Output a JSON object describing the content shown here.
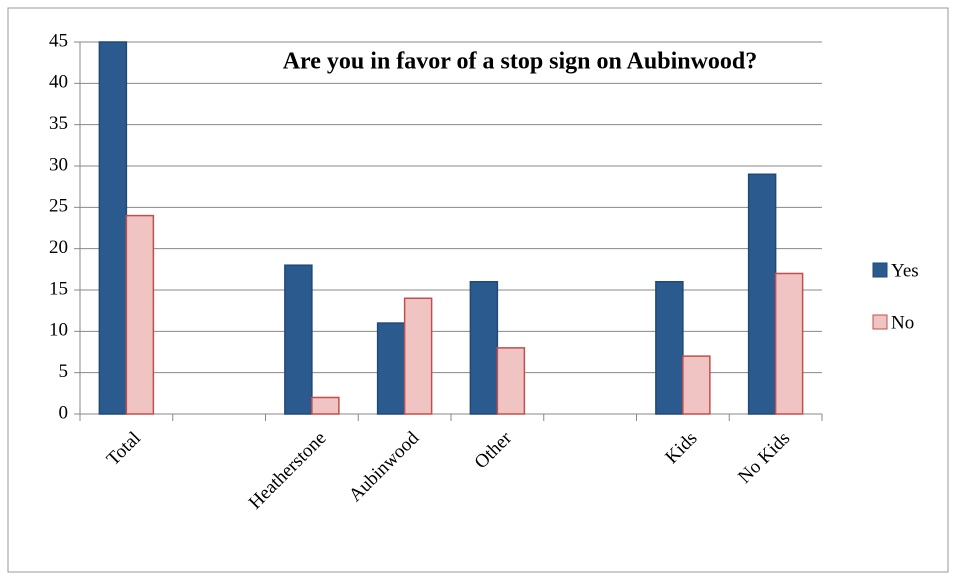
{
  "chart_data": {
    "type": "bar",
    "title": "Are you in favor of a stop sign on Aubinwood?",
    "categories": [
      "Total",
      null,
      "Heatherstone",
      "Aubinwood",
      "Other",
      null,
      "Kids",
      "No Kids"
    ],
    "series": [
      {
        "name": "Yes",
        "color": "#2b5b8e",
        "values": [
          45,
          null,
          18,
          11,
          16,
          null,
          16,
          29
        ]
      },
      {
        "name": "No",
        "color": "#f1c4c4",
        "values": [
          24,
          null,
          2,
          14,
          8,
          null,
          7,
          17
        ]
      }
    ],
    "ylim": [
      0,
      45
    ],
    "yticks": [
      0,
      5,
      10,
      15,
      20,
      25,
      30,
      35,
      40,
      45
    ],
    "grid": true,
    "legend": "right"
  }
}
